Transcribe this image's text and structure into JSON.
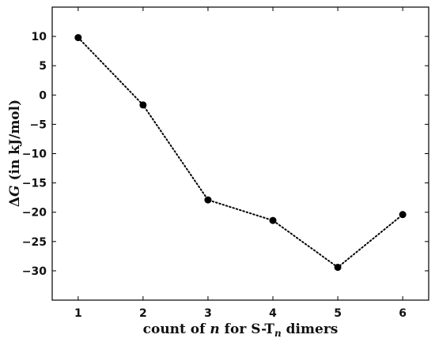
{
  "chart_data": {
    "type": "line",
    "x": [
      1,
      2,
      3,
      4,
      5,
      6
    ],
    "series": [
      {
        "values": [
          9.8,
          -1.7,
          -17.9,
          -21.4,
          -29.4,
          -20.4
        ],
        "color": "#000000",
        "line_style": "dotted",
        "marker": "circle"
      }
    ],
    "xlim": [
      0.6,
      6.4
    ],
    "ylim": [
      -35,
      15
    ],
    "x_ticks": [
      1,
      2,
      3,
      4,
      5,
      6
    ],
    "y_ticks": [
      10,
      5,
      0,
      -5,
      -10,
      -15,
      -20,
      -25,
      -30
    ],
    "x_tick_labels": [
      "1",
      "2",
      "3",
      "4",
      "5",
      "6"
    ],
    "y_tick_labels": [
      "10",
      "5",
      "0",
      "−5",
      "−10",
      "−15",
      "−20",
      "−25",
      "−30"
    ],
    "xlabel": {
      "prefix": "count of ",
      "var": "n",
      "middle": " for S-T",
      "sub": "n",
      "suffix": " dimers"
    },
    "ylabel": {
      "delta": "Δ",
      "var": "G",
      "rest": " (in kJ/mol)"
    },
    "grid": false
  }
}
